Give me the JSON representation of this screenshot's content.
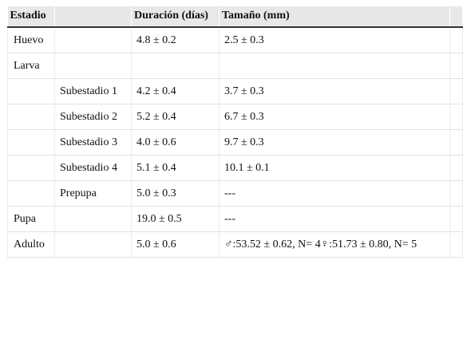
{
  "table": {
    "headers": [
      "Estadio",
      "",
      "Duración (días)",
      "Tamaño (mm)",
      ""
    ],
    "rows": [
      {
        "stage": "Huevo",
        "substage": "",
        "duration": "4.8 ± 0.2",
        "size": "2.5 ± 0.3"
      },
      {
        "stage": "Larva",
        "substage": "",
        "duration": "",
        "size": ""
      },
      {
        "stage": "",
        "substage": "Subestadio 1",
        "duration": "4.2 ± 0.4",
        "size": "3.7 ± 0.3"
      },
      {
        "stage": "",
        "substage": "Subestadio 2",
        "duration": "5.2 ± 0.4",
        "size": "6.7 ± 0.3"
      },
      {
        "stage": "",
        "substage": "Subestadio 3",
        "duration": "4.0 ± 0.6",
        "size": "9.7 ± 0.3"
      },
      {
        "stage": "",
        "substage": "Subestadio 4",
        "duration": "5.1 ± 0.4",
        "size": "10.1 ± 0.1"
      },
      {
        "stage": "",
        "substage": "Prepupa",
        "duration": "5.0 ± 0.3",
        "size": "---"
      },
      {
        "stage": "Pupa",
        "substage": "",
        "duration": "19.0 ± 0.5",
        "size": "---"
      },
      {
        "stage": "Adulto",
        "substage": "",
        "duration": "5.0 ± 0.6",
        "size": "♂:53.52 ± 0.62, N= 4♀:51.73 ± 0.80, N= 5"
      }
    ]
  }
}
